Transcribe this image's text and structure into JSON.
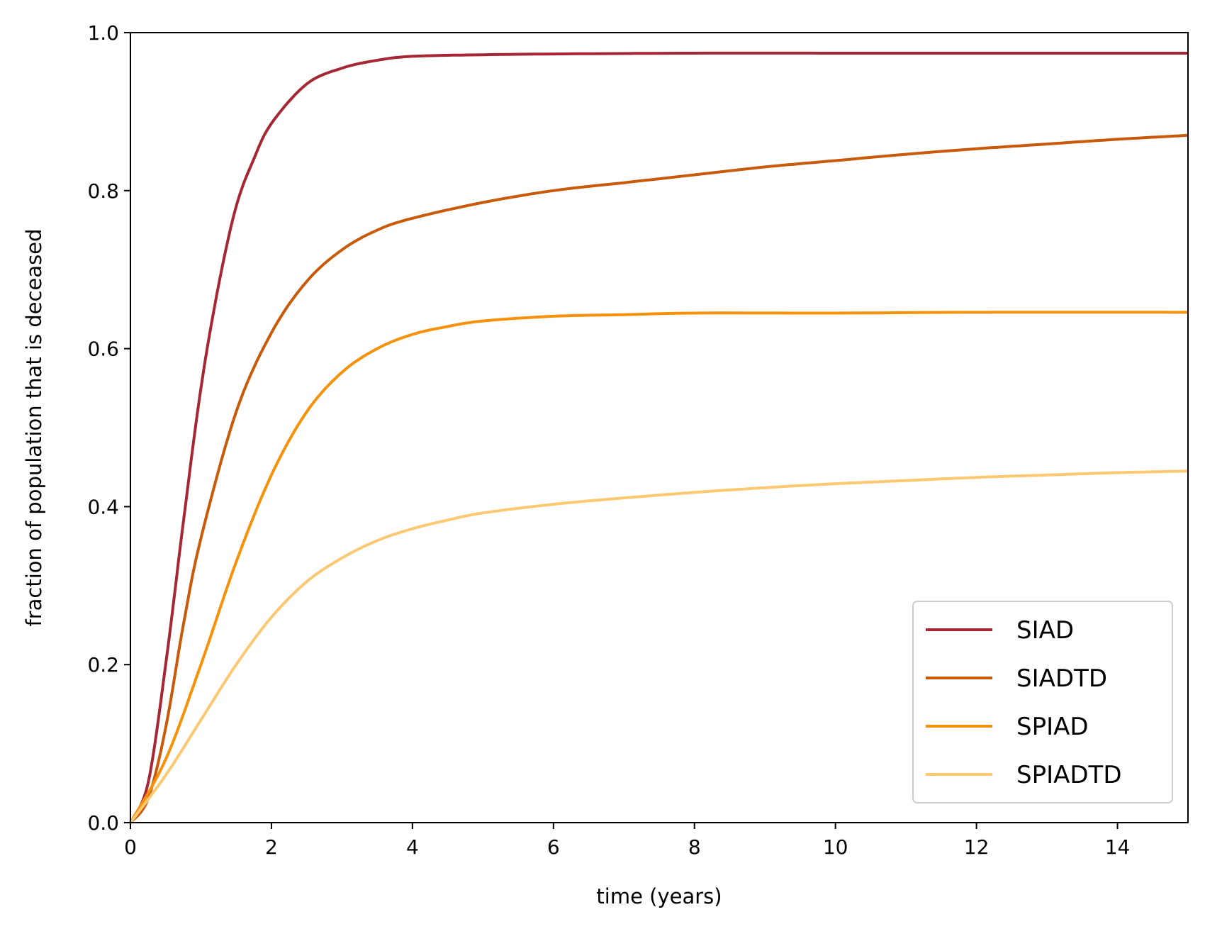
{
  "chart_data": {
    "type": "line",
    "title": "",
    "xlabel": "time (years)",
    "ylabel": "fraction of population that is deceased",
    "xlim": [
      0,
      15
    ],
    "ylim": [
      0,
      1.0
    ],
    "xticks": [
      "0",
      "2",
      "4",
      "6",
      "8",
      "10",
      "12",
      "14"
    ],
    "yticks": [
      "0.0",
      "0.2",
      "0.4",
      "0.6",
      "0.8",
      "1.0"
    ],
    "grid": false,
    "legend_position": "lower-right",
    "series": [
      {
        "name": "SIAD",
        "color": "#a62733",
        "points": [
          [
            0,
            0
          ],
          [
            0.25,
            0.05
          ],
          [
            0.5,
            0.2
          ],
          [
            0.75,
            0.38
          ],
          [
            1,
            0.55
          ],
          [
            1.25,
            0.68
          ],
          [
            1.5,
            0.78
          ],
          [
            1.75,
            0.84
          ],
          [
            2,
            0.885
          ],
          [
            2.5,
            0.935
          ],
          [
            3,
            0.955
          ],
          [
            3.5,
            0.965
          ],
          [
            4,
            0.97
          ],
          [
            5,
            0.972
          ],
          [
            6,
            0.973
          ],
          [
            8,
            0.974
          ],
          [
            10,
            0.974
          ],
          [
            12,
            0.974
          ],
          [
            15,
            0.974
          ]
        ]
      },
      {
        "name": "SIADTD",
        "color": "#c85a0a",
        "points": [
          [
            0,
            0
          ],
          [
            0.25,
            0.03
          ],
          [
            0.5,
            0.12
          ],
          [
            0.75,
            0.25
          ],
          [
            1,
            0.36
          ],
          [
            1.5,
            0.52
          ],
          [
            2,
            0.62
          ],
          [
            2.5,
            0.685
          ],
          [
            3,
            0.725
          ],
          [
            3.5,
            0.75
          ],
          [
            4,
            0.765
          ],
          [
            5,
            0.785
          ],
          [
            6,
            0.8
          ],
          [
            7,
            0.81
          ],
          [
            8,
            0.82
          ],
          [
            9,
            0.83
          ],
          [
            10,
            0.838
          ],
          [
            11,
            0.846
          ],
          [
            12,
            0.853
          ],
          [
            13,
            0.859
          ],
          [
            14,
            0.865
          ],
          [
            15,
            0.87
          ]
        ]
      },
      {
        "name": "SPIAD",
        "color": "#f5920a",
        "points": [
          [
            0,
            0
          ],
          [
            0.5,
            0.08
          ],
          [
            1,
            0.2
          ],
          [
            1.5,
            0.33
          ],
          [
            2,
            0.44
          ],
          [
            2.5,
            0.52
          ],
          [
            3,
            0.57
          ],
          [
            3.5,
            0.6
          ],
          [
            4,
            0.618
          ],
          [
            4.5,
            0.628
          ],
          [
            5,
            0.635
          ],
          [
            6,
            0.641
          ],
          [
            7,
            0.643
          ],
          [
            8,
            0.645
          ],
          [
            10,
            0.645
          ],
          [
            12,
            0.646
          ],
          [
            15,
            0.646
          ]
        ]
      },
      {
        "name": "SPIADTD",
        "color": "#fcc872",
        "points": [
          [
            0,
            0
          ],
          [
            0.5,
            0.06
          ],
          [
            1,
            0.13
          ],
          [
            1.5,
            0.2
          ],
          [
            2,
            0.26
          ],
          [
            2.5,
            0.305
          ],
          [
            3,
            0.335
          ],
          [
            3.5,
            0.357
          ],
          [
            4,
            0.372
          ],
          [
            4.5,
            0.383
          ],
          [
            5,
            0.392
          ],
          [
            6,
            0.403
          ],
          [
            7,
            0.411
          ],
          [
            8,
            0.418
          ],
          [
            9,
            0.424
          ],
          [
            10,
            0.429
          ],
          [
            11,
            0.433
          ],
          [
            12,
            0.437
          ],
          [
            13,
            0.44
          ],
          [
            14,
            0.443
          ],
          [
            15,
            0.445
          ]
        ]
      }
    ]
  }
}
